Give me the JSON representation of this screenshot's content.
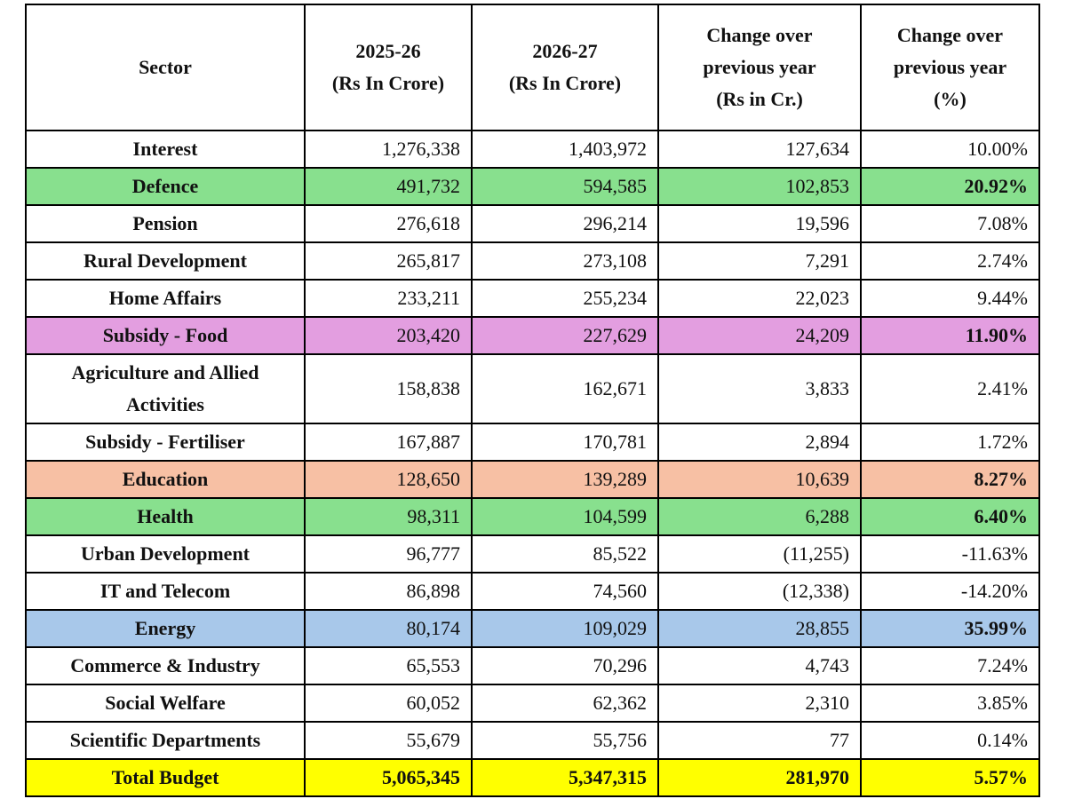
{
  "table": {
    "header": [
      [
        "Sector"
      ],
      [
        "2025-26",
        "(Rs In Crore)"
      ],
      [
        "2026-27",
        "(Rs In Crore)"
      ],
      [
        "Change over",
        "previous year",
        "(Rs in Cr.)"
      ],
      [
        "Change over",
        "previous year",
        "(%)"
      ]
    ],
    "rows": [
      [
        "Interest",
        "1,276,338",
        "1,403,972",
        "127,634",
        "10.00%"
      ],
      [
        "Defence",
        "491,732",
        "594,585",
        "102,853",
        "20.92%"
      ],
      [
        "Pension",
        "276,618",
        "296,214",
        "19,596",
        "7.08%"
      ],
      [
        "Rural Development",
        "265,817",
        "273,108",
        "7,291",
        "2.74%"
      ],
      [
        "Home Affairs",
        "233,211",
        "255,234",
        "22,023",
        "9.44%"
      ],
      [
        "Subsidy - Food",
        "203,420",
        "227,629",
        "24,209",
        "11.90%"
      ],
      [
        "Agriculture and Allied Activities",
        "158,838",
        "162,671",
        "3,833",
        "2.41%"
      ],
      [
        "Subsidy - Fertiliser",
        "167,887",
        "170,781",
        "2,894",
        "1.72%"
      ],
      [
        "Education",
        "128,650",
        "139,289",
        "10,639",
        "8.27%"
      ],
      [
        "Health",
        "98,311",
        "104,599",
        "6,288",
        "6.40%"
      ],
      [
        "Urban Development",
        "96,777",
        "85,522",
        "(11,255)",
        "-11.63%"
      ],
      [
        "IT and Telecom",
        "86,898",
        "74,560",
        "(12,338)",
        "-14.20%"
      ],
      [
        "Energy",
        "80,174",
        "109,029",
        "28,855",
        "35.99%"
      ],
      [
        "Commerce & Industry",
        "65,553",
        "70,296",
        "4,743",
        "7.24%"
      ],
      [
        "Social Welfare",
        "60,052",
        "62,362",
        "2,310",
        "3.85%"
      ],
      [
        "Scientific Departments",
        "55,679",
        "55,756",
        "77",
        "0.14%"
      ],
      [
        "Total Budget",
        "5,065,345",
        "5,347,315",
        "281,970",
        "5.57%"
      ]
    ]
  }
}
